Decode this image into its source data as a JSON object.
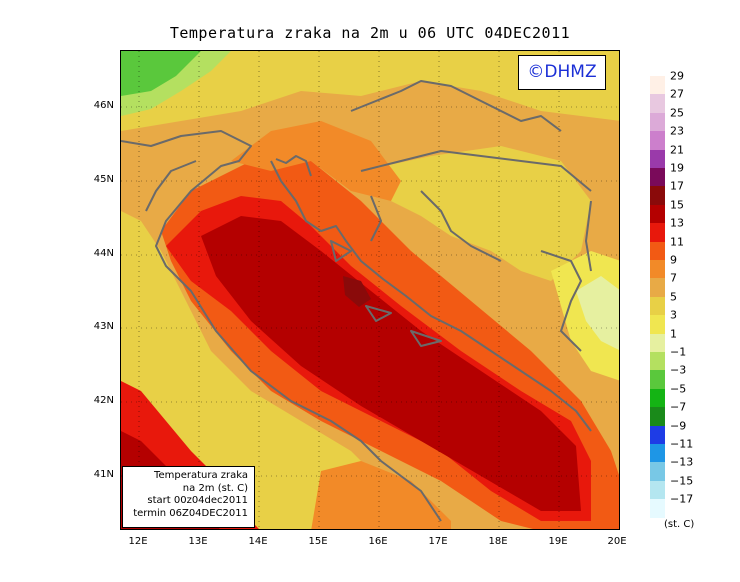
{
  "title": "Temperatura zraka na 2m u 06 UTC 04DEC2011",
  "copyright": "©DHMZ",
  "info_box": {
    "line1": "Temperatura zraka",
    "line2": "na 2m (st. C)",
    "line3": "start 00z04dec2011",
    "line4": "termin 06Z04DEC2011"
  },
  "lat_labels": [
    "46N",
    "45N",
    "44N",
    "43N",
    "42N",
    "41N"
  ],
  "lon_labels": [
    "12E",
    "13E",
    "14E",
    "15E",
    "16E",
    "17E",
    "18E",
    "19E",
    "20E"
  ],
  "legend": {
    "unit": "(st. C)",
    "labels": [
      "29",
      "27",
      "25",
      "23",
      "21",
      "19",
      "17",
      "15",
      "13",
      "11",
      "9",
      "7",
      "5",
      "3",
      "1",
      "−1",
      "−3",
      "−5",
      "−7",
      "−9",
      "−11",
      "−13",
      "−15",
      "−17"
    ],
    "colors": [
      "#fff0e6",
      "#e8c8e0",
      "#dcaad8",
      "#cc7fcc",
      "#9a3aaa",
      "#7a0a5a",
      "#8a0a0a",
      "#b40000",
      "#e8180c",
      "#f25a14",
      "#f28a28",
      "#e8aa46",
      "#e8d046",
      "#f0e650",
      "#e6f0a0",
      "#b4e060",
      "#5ac83c",
      "#14b414",
      "#1a8a1a",
      "#1e3ce6",
      "#1e96e6",
      "#78c8e6",
      "#b4e6f0",
      "#e6faff"
    ]
  },
  "colors": {
    "sea_core": "#b40000",
    "sea_darkest": "#8a0a0a",
    "warm_orange": "#f25a14",
    "mid_orange": "#e8aa46",
    "land_yellow": "#e8d046",
    "cold_green": "#5ac83c",
    "coastline": "#6a6a6a"
  }
}
